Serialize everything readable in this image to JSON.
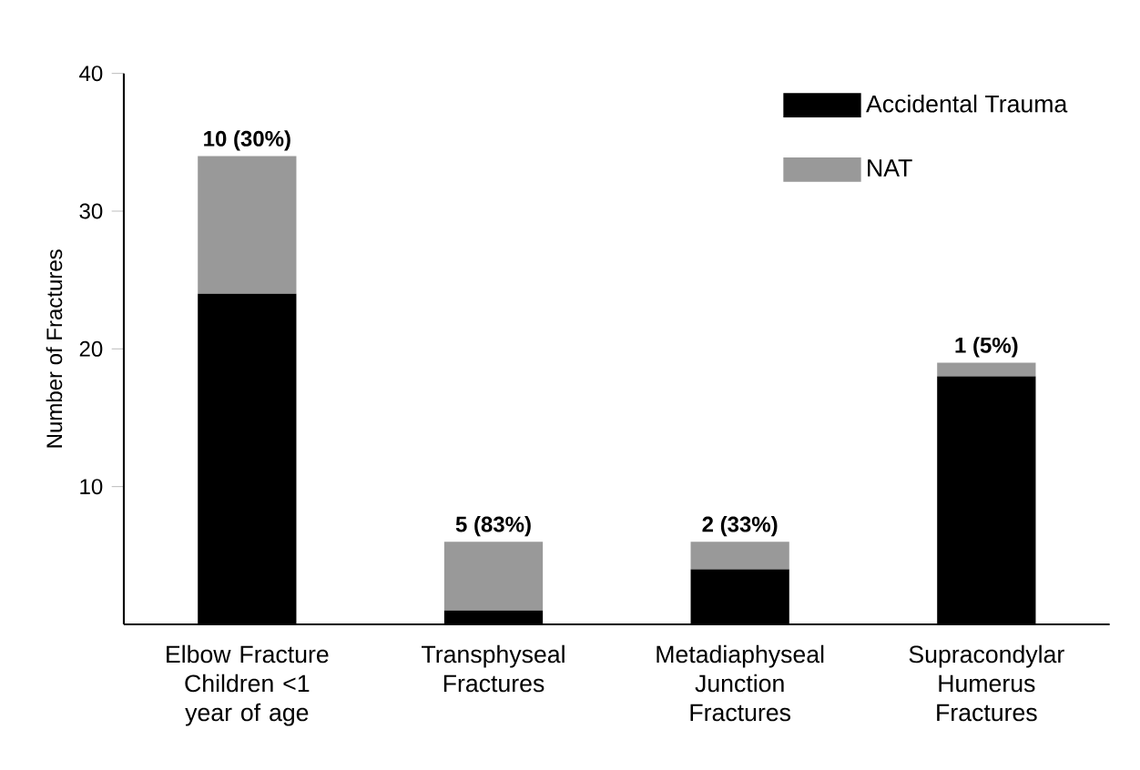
{
  "chart_data": {
    "type": "bar",
    "stacked": true,
    "ylabel": "Number of Fractures",
    "categories": [
      "Elbow Fracture Children <1 year of age",
      "Transphyseal Fractures",
      "Metadiaphyseal Junction Fractures",
      "Supracondylar Humerus Fractures"
    ],
    "series": [
      {
        "name": "Accidental Trauma",
        "color": "#000000",
        "values": [
          24,
          1,
          4,
          18
        ]
      },
      {
        "name": "NAT",
        "color": "#999999",
        "values": [
          10,
          5,
          2,
          1
        ],
        "value_labels": [
          "10 (30%)",
          "5 (83%)",
          "2 (33%)",
          "1 (5%)"
        ]
      }
    ],
    "ylim": [
      0,
      40
    ],
    "yticks": [
      10,
      20,
      30,
      40
    ],
    "grid": false,
    "legend": "top right"
  }
}
